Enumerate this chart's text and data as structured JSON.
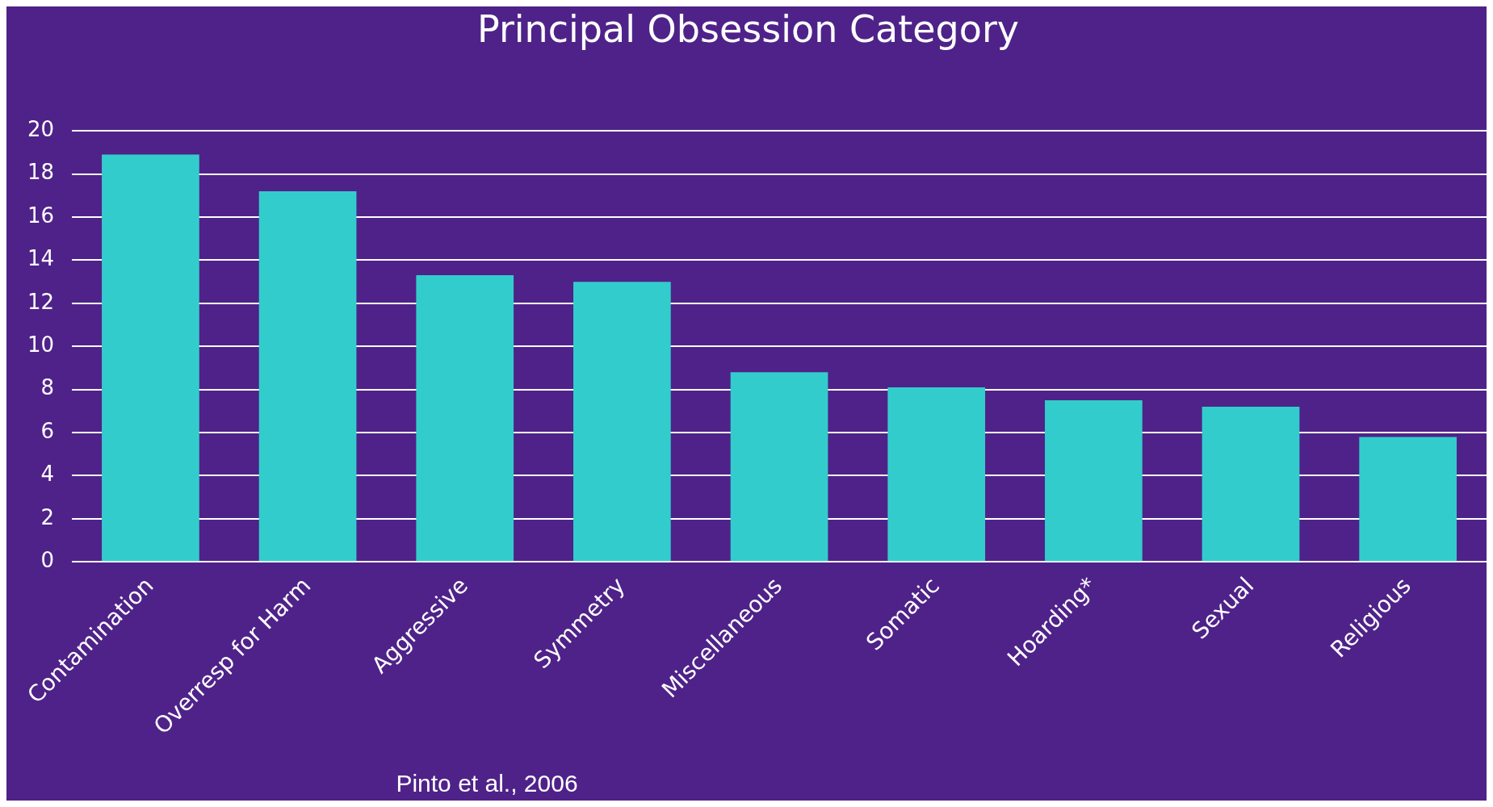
{
  "chart_data": {
    "type": "bar",
    "title": "Principal Obsession Category",
    "categories": [
      "Contamination",
      "Overresp for Harm",
      "Aggressive",
      "Symmetry",
      "Miscellaneous",
      "Somatic",
      "Hoarding*",
      "Sexual",
      "Religious"
    ],
    "values": [
      18.9,
      17.2,
      13.3,
      13.0,
      8.8,
      8.1,
      7.5,
      7.2,
      5.8
    ],
    "color": "#33cccc",
    "ylim": [
      0,
      20
    ],
    "yticks": [
      0,
      2,
      4,
      6,
      8,
      10,
      12,
      14,
      16,
      18,
      20
    ],
    "grid": "y",
    "legend": false,
    "annotations": [
      "Pinto et al., 2006"
    ]
  }
}
